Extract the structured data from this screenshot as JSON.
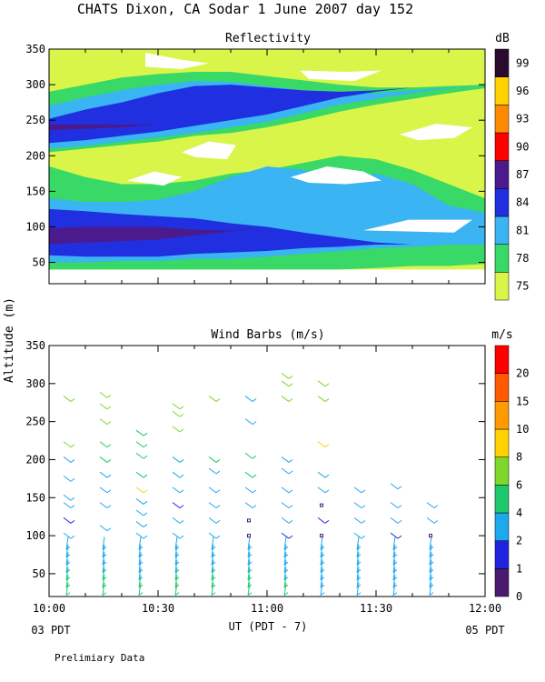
{
  "header": {
    "title": "CHATS Dixon, CA  Sodar    1 June 2007   day 152"
  },
  "footer": {
    "note": "Prelimiary Data",
    "left_label": "03 PDT",
    "right_label": "05 PDT"
  },
  "chart_data": [
    {
      "type": "heatmap",
      "title": "Reflectivity",
      "x_ticks": [
        "10:00",
        "10:30",
        "11:00",
        "11:30",
        "12:00"
      ],
      "x_range": [
        "10:00",
        "12:00"
      ],
      "ylim": [
        20,
        350
      ],
      "y_ticks": [
        50,
        100,
        150,
        200,
        250,
        300,
        350
      ],
      "colorbar": {
        "unit": "dB",
        "levels": [
          75,
          78,
          81,
          84,
          87,
          90,
          93,
          96,
          99
        ],
        "colors": [
          "#d9f54a",
          "#38d966",
          "#3ab4f2",
          "#2030e0",
          "#4b1a8c",
          "#ff0000",
          "#ff8a00",
          "#ffd200",
          "#2a0a2e"
        ]
      },
      "layers": [
        {
          "level": 75,
          "color": "#d9f54a",
          "from": 40,
          "to": 350
        },
        {
          "level": 78,
          "color": "#38d966",
          "band": "lower",
          "from": 40,
          "to": 200
        },
        {
          "level": 81,
          "color": "#3ab4f2",
          "band": "lower",
          "from": 50,
          "to": 190
        },
        {
          "level": 84,
          "color": "#2030e0",
          "band": "lower",
          "from": 55,
          "to": 130
        },
        {
          "level": 87,
          "color": "#4b1a8c",
          "band": "lower",
          "from": 75,
          "to": 100
        },
        {
          "level": 78,
          "color": "#38d966",
          "band": "upper",
          "from": 200,
          "to": 320
        },
        {
          "level": 81,
          "color": "#3ab4f2",
          "band": "upper",
          "from": 205,
          "to": 305
        },
        {
          "level": 84,
          "color": "#2030e0",
          "band": "upper",
          "from": 215,
          "to": 300
        },
        {
          "level": 87,
          "color": "#4b1a8c",
          "band": "upper",
          "from": 236,
          "to": 244
        }
      ]
    },
    {
      "type": "scatter",
      "title": "Wind Barbs (m/s)",
      "ylabel": "Altitude (m)",
      "xlabel": "UT  (PDT - 7)",
      "x_ticks": [
        "10:00",
        "10:30",
        "11:00",
        "11:30",
        "12:00"
      ],
      "x_range": [
        "10:00",
        "12:00"
      ],
      "ylim": [
        20,
        350
      ],
      "y_ticks": [
        50,
        100,
        150,
        200,
        250,
        300,
        350
      ],
      "colorbar": {
        "unit": "m/s",
        "levels": [
          0,
          1,
          2,
          4,
          6,
          8,
          10,
          15,
          20
        ],
        "colors": [
          "#4b1a6e",
          "#2024e0",
          "#1ea8ee",
          "#1ec86a",
          "#7ed82a",
          "#ffd200",
          "#ff9a00",
          "#ff5a00",
          "#ff0000"
        ]
      },
      "series": [
        {
          "x": "10:05",
          "altitudes": [
            30,
            40,
            50,
            60,
            70,
            80,
            90,
            100,
            120,
            140,
            150,
            175,
            200,
            220,
            280
          ],
          "speeds": [
            4,
            4,
            4,
            3,
            3,
            3,
            3,
            3,
            1,
            2,
            2,
            3,
            3,
            6,
            6
          ]
        },
        {
          "x": "10:15",
          "altitudes": [
            30,
            40,
            50,
            60,
            70,
            80,
            90,
            110,
            140,
            160,
            180,
            200,
            220,
            250,
            270,
            285
          ],
          "speeds": [
            4,
            4,
            4,
            3,
            3,
            3,
            3,
            3,
            3,
            3,
            3,
            4,
            5,
            6,
            6,
            6
          ]
        },
        {
          "x": "10:25",
          "altitudes": [
            30,
            40,
            50,
            60,
            70,
            80,
            90,
            100,
            115,
            130,
            145,
            160,
            180,
            205,
            220,
            235
          ],
          "speeds": [
            4,
            4,
            3,
            3,
            3,
            3,
            3,
            3,
            3,
            3,
            3,
            8,
            4,
            4,
            5,
            5
          ]
        },
        {
          "x": "10:35",
          "altitudes": [
            30,
            40,
            50,
            60,
            70,
            80,
            90,
            100,
            120,
            140,
            160,
            180,
            200,
            240,
            260,
            270
          ],
          "speeds": [
            4,
            4,
            4,
            3,
            3,
            3,
            3,
            3,
            3,
            1,
            3,
            3,
            3,
            6,
            6,
            6
          ]
        },
        {
          "x": "10:45",
          "altitudes": [
            30,
            40,
            50,
            60,
            70,
            80,
            90,
            100,
            120,
            140,
            160,
            185,
            200,
            280
          ],
          "speeds": [
            4,
            4,
            4,
            3,
            3,
            3,
            3,
            3,
            2,
            3,
            3,
            3,
            4,
            6
          ]
        },
        {
          "x": "10:55",
          "altitudes": [
            30,
            40,
            50,
            60,
            70,
            80,
            90,
            100,
            120,
            140,
            160,
            180,
            205,
            250,
            280
          ],
          "speeds": [
            4,
            4,
            4,
            3,
            3,
            3,
            3,
            0,
            0,
            2,
            3,
            4,
            5,
            3,
            3
          ]
        },
        {
          "x": "11:05",
          "altitudes": [
            30,
            40,
            50,
            60,
            70,
            80,
            90,
            100,
            120,
            140,
            160,
            185,
            200,
            280,
            300,
            310
          ],
          "speeds": [
            4,
            4,
            3,
            3,
            3,
            2,
            2,
            1,
            2,
            2,
            3,
            3,
            3,
            6,
            6,
            6
          ]
        },
        {
          "x": "11:15",
          "altitudes": [
            30,
            40,
            50,
            60,
            70,
            80,
            90,
            100,
            120,
            140,
            160,
            180,
            220,
            280,
            300
          ],
          "speeds": [
            3,
            3,
            3,
            3,
            3,
            2,
            2,
            0,
            1,
            0,
            2,
            3,
            8,
            6,
            6
          ]
        },
        {
          "x": "11:25",
          "altitudes": [
            30,
            40,
            50,
            60,
            70,
            80,
            90,
            100,
            120,
            140,
            160
          ],
          "speeds": [
            3,
            3,
            3,
            3,
            2,
            2,
            2,
            2,
            3,
            3,
            3
          ]
        },
        {
          "x": "11:35",
          "altitudes": [
            30,
            40,
            50,
            60,
            70,
            80,
            90,
            100,
            120,
            140,
            165
          ],
          "speeds": [
            3,
            3,
            3,
            2,
            2,
            2,
            2,
            1,
            3,
            3,
            3
          ]
        },
        {
          "x": "11:45",
          "altitudes": [
            30,
            40,
            50,
            60,
            70,
            80,
            90,
            100,
            120,
            140
          ],
          "speeds": [
            3,
            3,
            3,
            3,
            3,
            3,
            3,
            0,
            3,
            3
          ]
        }
      ]
    }
  ]
}
